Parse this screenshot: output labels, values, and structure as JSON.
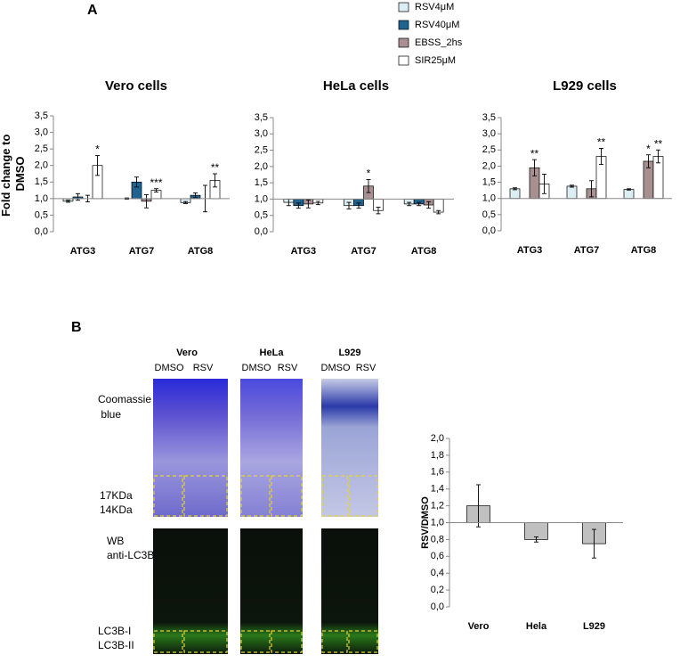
{
  "panel_a": {
    "label": "A",
    "ylabel": [
      "Fold change to",
      "DMSO"
    ]
  },
  "chart_data": [
    {
      "type": "bar",
      "title": "Vero cells",
      "categories": [
        "ATG3",
        "ATG7",
        "ATG8"
      ],
      "baseline": 1,
      "ylim": [
        0,
        3.5
      ],
      "yticks": [
        {
          "value": 0,
          "label": "0,0"
        },
        {
          "value": 0.5,
          "label": "0,5"
        },
        {
          "value": 1,
          "label": "1,0"
        },
        {
          "value": 1.5,
          "label": "1,5"
        },
        {
          "value": 2,
          "label": "2,0"
        },
        {
          "value": 2.5,
          "label": "2,5"
        },
        {
          "value": 3,
          "label": "3,0"
        },
        {
          "value": 3.5,
          "label": "3,5"
        }
      ],
      "series": [
        {
          "name": "RSV4μM",
          "color": "#dbeef4",
          "values": [
            0.92,
            1.0,
            0.88
          ],
          "errors": [
            0.03,
            0.02,
            0.03
          ],
          "significance": [
            null,
            null,
            null
          ]
        },
        {
          "name": "RSV40μM",
          "color": "#1f6391",
          "values": [
            1.05,
            1.5,
            1.1
          ],
          "errors": [
            0.1,
            0.15,
            0.07
          ],
          "significance": [
            null,
            null,
            null
          ]
        },
        {
          "name": "EBSS_2hs",
          "color": "#a89092",
          "values": [
            1.0,
            0.92,
            1.0
          ],
          "errors": [
            0.1,
            0.2,
            0.4
          ],
          "significance": [
            null,
            null,
            null
          ]
        },
        {
          "name": "SIR25μM",
          "color": "#ffffff",
          "values": [
            2.0,
            1.25,
            1.55
          ],
          "errors": [
            0.3,
            0.05,
            0.2
          ],
          "significance": [
            "*",
            "***",
            "**"
          ]
        }
      ]
    },
    {
      "type": "bar",
      "title": "HeLa cells",
      "categories": [
        "ATG3",
        "ATG7",
        "ATG8"
      ],
      "baseline": 1,
      "ylim": [
        0,
        3.5
      ],
      "yticks": [
        {
          "value": 0,
          "label": "0,0"
        },
        {
          "value": 0.5,
          "label": "0,5"
        },
        {
          "value": 1,
          "label": "1,0"
        },
        {
          "value": 1.5,
          "label": "1,5"
        },
        {
          "value": 2,
          "label": "2,0"
        },
        {
          "value": 2.5,
          "label": "2,5"
        },
        {
          "value": 3,
          "label": "3,0"
        },
        {
          "value": 3.5,
          "label": "3,5"
        }
      ],
      "series": [
        {
          "name": "RSV4μM",
          "color": "#dbeef4",
          "values": [
            0.9,
            0.8,
            0.85
          ],
          "errors": [
            0.1,
            0.1,
            0.05
          ],
          "significance": [
            null,
            null,
            null
          ]
        },
        {
          "name": "RSV40μM",
          "color": "#1f6391",
          "values": [
            0.8,
            0.8,
            0.85
          ],
          "errors": [
            0.08,
            0.08,
            0.05
          ],
          "significance": [
            null,
            null,
            null
          ]
        },
        {
          "name": "EBSS_2hs",
          "color": "#a89092",
          "values": [
            0.85,
            1.4,
            0.82
          ],
          "errors": [
            0.12,
            0.2,
            0.1
          ],
          "significance": [
            null,
            "*",
            null
          ]
        },
        {
          "name": "SIR25μM",
          "color": "#ffffff",
          "values": [
            0.88,
            0.65,
            0.6
          ],
          "errors": [
            0.05,
            0.1,
            0.05
          ],
          "significance": [
            null,
            null,
            null
          ]
        }
      ]
    },
    {
      "type": "bar",
      "title": "L929 cells",
      "categories": [
        "ATG3",
        "ATG7",
        "ATG8"
      ],
      "baseline": 1,
      "ylim": [
        0,
        3.5
      ],
      "yticks": [
        {
          "value": 0,
          "label": "0,0"
        },
        {
          "value": 0.5,
          "label": "0,5"
        },
        {
          "value": 1,
          "label": "1,0"
        },
        {
          "value": 1.5,
          "label": "1,5"
        },
        {
          "value": 2,
          "label": "2,0"
        },
        {
          "value": 2.5,
          "label": "2,5"
        },
        {
          "value": 3,
          "label": "3,0"
        },
        {
          "value": 3.5,
          "label": "3,5"
        }
      ],
      "series": [
        {
          "name": "RSV4μM",
          "color": "#dbeef4",
          "values": [
            1.3,
            1.38,
            1.28
          ],
          "errors": [
            0.03,
            0.03,
            0.02
          ],
          "significance": [
            null,
            null,
            null
          ]
        },
        {
          "name": "RSV40μM",
          "color": "#1f6391",
          "values": [
            null,
            null,
            null
          ],
          "errors": [
            null,
            null,
            null
          ],
          "significance": [
            null,
            null,
            null
          ]
        },
        {
          "name": "EBSS_2hs",
          "color": "#a89092",
          "values": [
            1.95,
            1.3,
            2.15
          ],
          "errors": [
            0.25,
            0.25,
            0.2
          ],
          "significance": [
            "**",
            null,
            "*"
          ]
        },
        {
          "name": "SIR25μM",
          "color": "#ffffff",
          "values": [
            1.45,
            2.3,
            2.3
          ],
          "errors": [
            0.3,
            0.25,
            0.2
          ],
          "significance": [
            null,
            "**",
            "**"
          ]
        }
      ]
    },
    {
      "type": "bar",
      "ylabel": "RSV/DMSO",
      "categories": [
        "Vero",
        "Hela",
        "L929"
      ],
      "baseline": 1,
      "ylim": [
        0,
        2
      ],
      "yticks": [
        {
          "value": 0,
          "label": "0,0"
        },
        {
          "value": 0.2,
          "label": "0,2"
        },
        {
          "value": 0.4,
          "label": "0,4"
        },
        {
          "value": 0.6,
          "label": "0,6"
        },
        {
          "value": 0.8,
          "label": "0,8"
        },
        {
          "value": 1,
          "label": "1,0"
        },
        {
          "value": 1.2,
          "label": "1,2"
        },
        {
          "value": 1.4,
          "label": "1,4"
        },
        {
          "value": 1.6,
          "label": "1,6"
        },
        {
          "value": 1.8,
          "label": "1,8"
        },
        {
          "value": 2,
          "label": "2,0"
        }
      ],
      "values": [
        1.2,
        0.8,
        0.75
      ],
      "errors": [
        0.25,
        0.03,
        0.17
      ],
      "color": "#c0c0c0"
    }
  ],
  "panel_b": {
    "label": "B",
    "cells": [
      "Vero",
      "HeLa",
      "L929"
    ],
    "lanes": [
      "DMSO",
      "RSV"
    ],
    "coomassie": [
      "Coomassie",
      " blue"
    ],
    "kda": [
      "17KDa",
      "14KDa"
    ],
    "wb": [
      "WB",
      "anti-LC3B"
    ],
    "lc3": [
      "LC3B-I",
      "LC3B-II"
    ]
  }
}
